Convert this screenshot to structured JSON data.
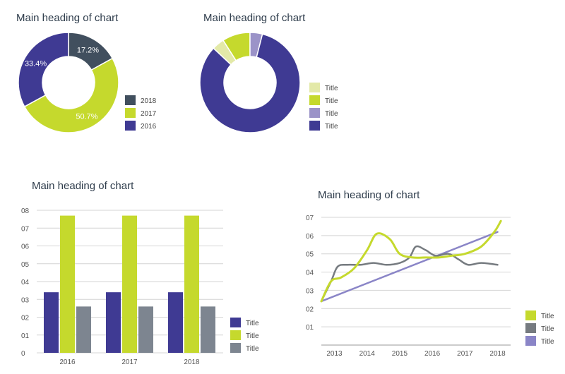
{
  "chart_data": [
    {
      "type": "pie",
      "title": "Main heading of chart",
      "slices": [
        {
          "label": "2018",
          "value": 17.2,
          "value_label": "17.2%",
          "color": "#414f5e"
        },
        {
          "label": "2017",
          "value": 50.7,
          "value_label": "50.7%",
          "color": "#c5d92d"
        },
        {
          "label": "2016",
          "value": 33.4,
          "value_label": "33.4%",
          "color": "#3f3a93"
        }
      ],
      "legend": [
        "2018",
        "2017",
        "2016"
      ],
      "legend_position": "right"
    },
    {
      "type": "pie",
      "title": "Main heading of chart",
      "slices": [
        {
          "label": "Title",
          "value": 4,
          "color": "#e3e9a8"
        },
        {
          "label": "Title",
          "value": 9,
          "color": "#c5d92d"
        },
        {
          "label": "Title",
          "value": 4,
          "color": "#9b93c8"
        },
        {
          "label": "Title",
          "value": 83,
          "color": "#3f3a93"
        }
      ],
      "legend": [
        "Title",
        "Title",
        "Title",
        "Title"
      ],
      "legend_position": "right"
    },
    {
      "type": "bar",
      "title": "Main heading of chart",
      "categories": [
        "2016",
        "2017",
        "2018"
      ],
      "series": [
        {
          "name": "Title",
          "values": [
            3.4,
            3.4,
            3.4
          ],
          "color": "#3f3a93"
        },
        {
          "name": "Title",
          "values": [
            7.7,
            7.7,
            7.7
          ],
          "color": "#c5d92d"
        },
        {
          "name": "Title",
          "values": [
            2.6,
            2.6,
            2.6
          ],
          "color": "#7d8590"
        }
      ],
      "yticks": [
        "0",
        "01",
        "02",
        "03",
        "04",
        "05",
        "06",
        "07",
        "08"
      ],
      "ylim": [
        0,
        8
      ],
      "grid": true,
      "legend_position": "right"
    },
    {
      "type": "line",
      "title": "Main heading of chart",
      "categories": [
        "2013",
        "2014",
        "2015",
        "2016",
        "2017",
        "2018"
      ],
      "xlim": [
        2012.6,
        2018.4
      ],
      "ylim": [
        0,
        7
      ],
      "yticks": [
        "01",
        "02",
        "03",
        "04",
        "05",
        "06",
        "07"
      ],
      "grid": true,
      "legend_position": "right",
      "series": [
        {
          "name": "Title",
          "color": "#c5d92d",
          "x": [
            2012.6,
            2012.9,
            2013.2,
            2013.6,
            2014.0,
            2014.3,
            2014.7,
            2015.0,
            2015.4,
            2015.8,
            2016.2,
            2016.6,
            2017.0,
            2017.5,
            2017.9,
            2018.1
          ],
          "y": [
            2.4,
            3.5,
            3.7,
            4.2,
            5.2,
            6.1,
            5.8,
            5.0,
            4.8,
            4.8,
            4.8,
            4.9,
            5.0,
            5.4,
            6.2,
            6.8
          ]
        },
        {
          "name": "Title",
          "color": "#767b80",
          "x": [
            2012.6,
            2012.9,
            2013.1,
            2013.4,
            2013.8,
            2014.2,
            2014.6,
            2015.0,
            2015.3,
            2015.5,
            2015.8,
            2016.1,
            2016.5,
            2016.8,
            2017.1,
            2017.5,
            2018.0
          ],
          "y": [
            2.4,
            3.5,
            4.3,
            4.4,
            4.4,
            4.5,
            4.4,
            4.5,
            4.8,
            5.4,
            5.2,
            4.9,
            5.0,
            4.7,
            4.4,
            4.5,
            4.4
          ]
        },
        {
          "name": "Title",
          "color": "#8a85c7",
          "x": [
            2012.6,
            2018.0
          ],
          "y": [
            2.4,
            6.2
          ]
        }
      ]
    }
  ]
}
